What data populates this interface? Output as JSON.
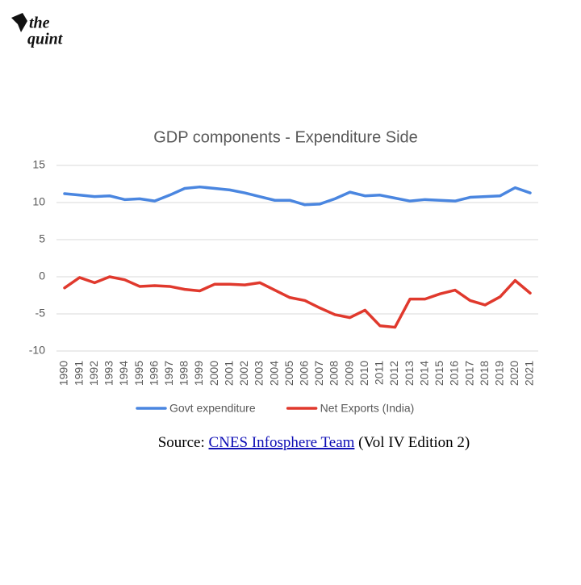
{
  "logo": {
    "line1": "the",
    "line2": "quint"
  },
  "source": {
    "prefix": "Source:",
    "link": "CNES Infosphere Team",
    "suffix": "(Vol IV Edition 2)"
  },
  "chart_data": {
    "type": "line",
    "title": "GDP components - Expenditure Side",
    "categories": [
      "1990",
      "1991",
      "1992",
      "1993",
      "1994",
      "1995",
      "1996",
      "1997",
      "1998",
      "1999",
      "2000",
      "2001",
      "2002",
      "2003",
      "2004",
      "2005",
      "2006",
      "2007",
      "2008",
      "2009",
      "2010",
      "2011",
      "2012",
      "2013",
      "2014",
      "2015",
      "2016",
      "2017",
      "2018",
      "2019",
      "2020",
      "2021"
    ],
    "series": [
      {
        "name": "Govt expenditure",
        "color": "#4a86e0",
        "values": [
          11.2,
          11.0,
          10.8,
          10.9,
          10.4,
          10.5,
          10.2,
          11.0,
          11.9,
          12.1,
          11.9,
          11.7,
          11.3,
          10.8,
          10.3,
          10.3,
          9.7,
          9.8,
          10.5,
          11.4,
          10.9,
          11.0,
          10.6,
          10.2,
          10.4,
          10.3,
          10.2,
          10.7,
          10.8,
          10.9,
          12.0,
          11.3
        ]
      },
      {
        "name": "Net Exports (India)",
        "color": "#e0392d",
        "values": [
          -1.5,
          -0.1,
          -0.8,
          0.0,
          -0.4,
          -1.3,
          -1.2,
          -1.3,
          -1.7,
          -1.9,
          -1.0,
          -1.0,
          -1.1,
          -0.8,
          -1.8,
          -2.8,
          -3.2,
          -4.2,
          -5.1,
          -5.5,
          -4.5,
          -6.6,
          -6.8,
          -3.0,
          -3.0,
          -2.3,
          -1.8,
          -3.2,
          -3.8,
          -2.7,
          -0.5,
          -2.2
        ]
      }
    ],
    "ylim": [
      -10,
      15
    ],
    "yticks": [
      -10,
      -5,
      0,
      5,
      10,
      15
    ],
    "grid": true,
    "legend": "bottom"
  }
}
